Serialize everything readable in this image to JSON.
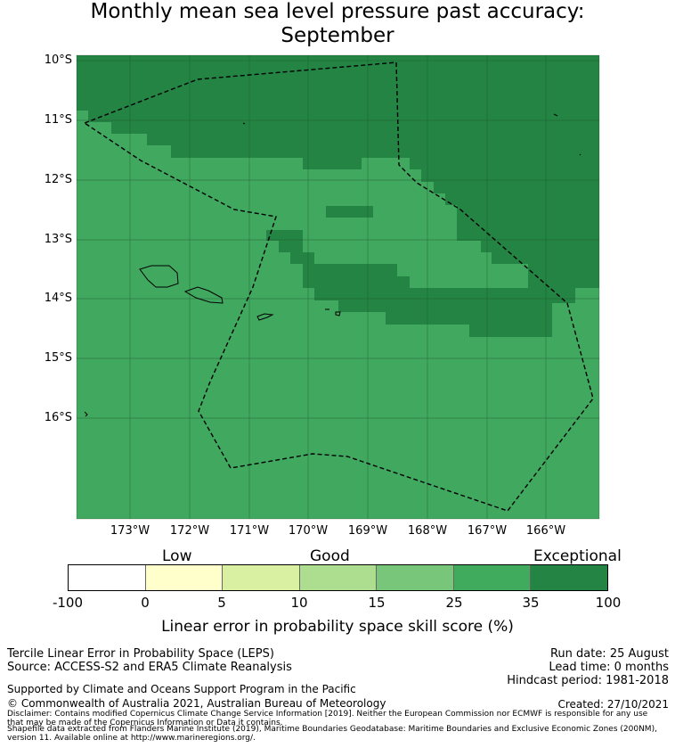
{
  "title": {
    "line1": "Monthly mean sea level pressure past accuracy:",
    "line2": "September"
  },
  "map": {
    "lat_labels": [
      "10°S",
      "11°S",
      "12°S",
      "13°S",
      "14°S",
      "15°S",
      "16°S"
    ],
    "lon_labels": [
      "173°W",
      "172°W",
      "171°W",
      "170°W",
      "169°W",
      "168°W",
      "167°W",
      "166°W"
    ],
    "colors": {
      "good_fill": "#41a85f",
      "exceptional_fill": "#238443",
      "gridline": "#1f5a2f",
      "outline": "#000000"
    },
    "dominant_category": "25 to 35",
    "exceptional_region": "northern and north-eastern area"
  },
  "colorbar": {
    "category_labels": [
      "Low",
      "Good",
      "Exceptional"
    ],
    "ticks": [
      "-100",
      "0",
      "5",
      "10",
      "15",
      "25",
      "35",
      "100"
    ],
    "colors": [
      "#ffffff",
      "#ffffcc",
      "#d9f0a3",
      "#addd8e",
      "#78c679",
      "#41ab5d",
      "#238443"
    ],
    "label": "Linear error in probability space skill score (%)"
  },
  "footer": {
    "left1": "Tercile Linear Error in Probability Space (LEPS)",
    "left2": "Source: ACCESS-S2 and ERA5 Climate Reanalysis",
    "right1": "Run date: 25 August",
    "right2": "Lead time: 0 months",
    "right3": "Hindcast period: 1981-2018",
    "support": "Supported by Climate and Oceans Support Program in the Pacific",
    "copyright": "© Commonwealth of Australia 2021, Australian Bureau of Meteorology",
    "created": "Created: 27/10/2021",
    "disclaimer1": "Disclaimer: Contains modified Copernicus Climate Change Service Information [2019]. Neither the European Commission nor ECMWF is responsible for any use",
    "disclaimer2": "that may be made of the Copernicus Information or Data it contains.",
    "shapefile1": "Shapefile data extracted from Flanders Marine Institute (2019), Maritime Boundaries Geodatabase: Maritime Boundaries and Exclusive Economic Zones (200NM),",
    "shapefile2": "version 11. Available online at http://www.marineregions.org/."
  }
}
